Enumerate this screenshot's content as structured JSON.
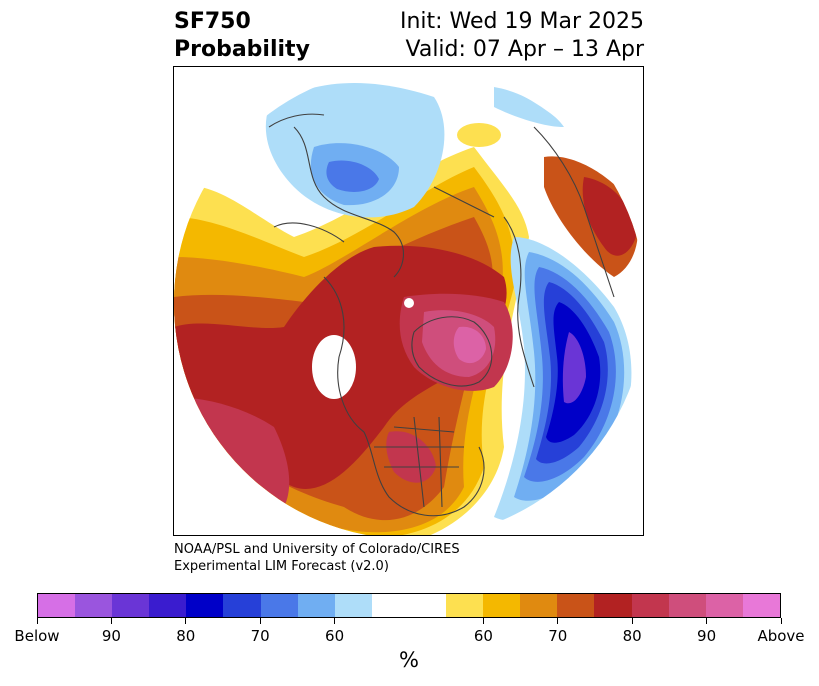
{
  "title": {
    "line1": "SF750",
    "line2": "Probability"
  },
  "init": {
    "line1": "Init: Wed 19 Mar 2025",
    "line2": "Valid: 07 Apr – 13 Apr"
  },
  "credit": {
    "line1": "NOAA/PSL and University of Colorado/CIRES",
    "line2": "Experimental LIM Forecast (v2.0)"
  },
  "colorbar": {
    "unit": "%",
    "colors": [
      "#d66fe6",
      "#9a55de",
      "#6a35d6",
      "#3a1ccf",
      "#0000c8",
      "#2640d8",
      "#4a78e8",
      "#70aef2",
      "#aeddf9",
      "#ffffff",
      "#ffffff",
      "#fde050",
      "#f4b800",
      "#e08a10",
      "#c95318",
      "#b22222",
      "#c2364e",
      "#cf4e7c",
      "#dc62a6",
      "#e878d8"
    ],
    "tick_labels": [
      "Below",
      "90",
      "80",
      "70",
      "60",
      "60",
      "70",
      "80",
      "90",
      "Above"
    ]
  }
}
